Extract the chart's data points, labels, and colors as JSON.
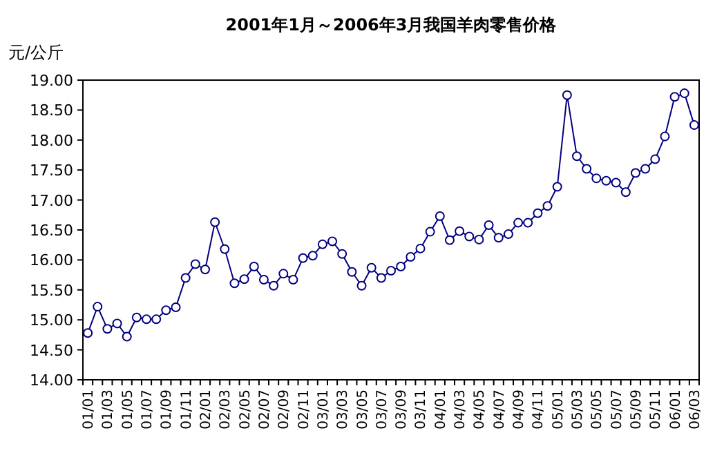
{
  "chart_data": {
    "type": "line",
    "title": "2001年1月～2006年3月我国羊肉零售价格",
    "ylabel": "元/公斤",
    "categories": [
      "01/01",
      null,
      "01/03",
      null,
      "01/05",
      null,
      "01/07",
      null,
      "01/09",
      null,
      "01/11",
      null,
      "02/01",
      null,
      "02/03",
      null,
      "02/05",
      null,
      "02/07",
      null,
      "02/09",
      null,
      "02/11",
      null,
      "03/01",
      null,
      "03/03",
      null,
      "03/05",
      null,
      "03/07",
      null,
      "03/09",
      null,
      "03/11",
      null,
      "04/01",
      null,
      "04/03",
      null,
      "04/05",
      null,
      "04/07",
      null,
      "04/09",
      null,
      "04/11",
      null,
      "05/01",
      null,
      "05/03",
      null,
      "05/05",
      null,
      "05/07",
      null,
      "05/09",
      null,
      "05/11",
      null,
      "06/01",
      null,
      "06/03"
    ],
    "series": [
      {
        "color": "#000080",
        "values": [
          14.78,
          15.22,
          14.85,
          14.94,
          14.72,
          15.04,
          15.01,
          15.01,
          15.16,
          15.21,
          15.7,
          15.93,
          15.84,
          16.63,
          16.18,
          15.61,
          15.68,
          15.89,
          15.67,
          15.57,
          15.77,
          15.67,
          16.03,
          16.07,
          16.26,
          16.31,
          16.1,
          15.8,
          15.57,
          15.87,
          15.7,
          15.82,
          15.89,
          16.05,
          16.19,
          16.47,
          16.73,
          16.33,
          16.48,
          16.39,
          16.34,
          16.58,
          16.37,
          16.43,
          16.62,
          16.62,
          16.78,
          16.9,
          17.22,
          18.75,
          17.73,
          17.52,
          17.36,
          17.32,
          17.29,
          17.13,
          17.45,
          17.52,
          17.68,
          18.06,
          18.72,
          18.78,
          18.25
        ]
      }
    ],
    "ylim": [
      14,
      19
    ],
    "yticks": [
      {
        "value": 14,
        "label": "14.00"
      },
      {
        "value": 14.5,
        "label": "14.50"
      },
      {
        "value": 15,
        "label": "15.00"
      },
      {
        "value": 15.5,
        "label": "15.50"
      },
      {
        "value": 16,
        "label": "16.00"
      },
      {
        "value": 16.5,
        "label": "16.50"
      },
      {
        "value": 17,
        "label": "17.00"
      },
      {
        "value": 17.5,
        "label": "17.50"
      },
      {
        "value": 18,
        "label": "18.00"
      },
      {
        "value": 18.5,
        "label": "18.50"
      },
      {
        "value": 19,
        "label": "19.00"
      }
    ],
    "marker": "circle",
    "line_style": "solid"
  }
}
